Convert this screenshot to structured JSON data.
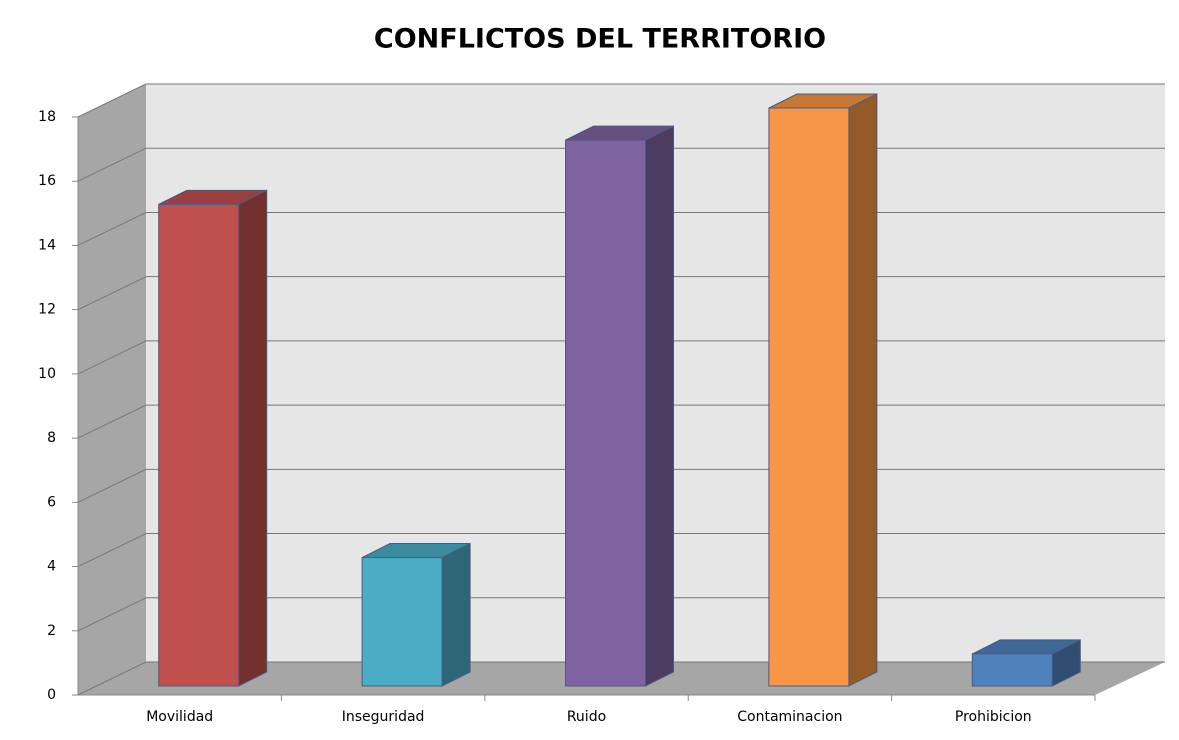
{
  "chart_data": {
    "type": "bar3d",
    "title": "CONFLICTOS DEL TERRITORIO",
    "categories": [
      "Movilidad",
      "Inseguridad",
      "Ruido",
      "Contaminacion",
      "Prohibicion"
    ],
    "values": [
      15,
      4,
      17,
      18,
      1
    ],
    "colors": [
      "#c0504d",
      "#4bacc6",
      "#8064a2",
      "#f79646",
      "#4f81bd"
    ],
    "ylim": [
      0,
      18
    ],
    "yticks": [
      0,
      2,
      4,
      6,
      8,
      10,
      12,
      14,
      16,
      18
    ],
    "grid": true
  }
}
